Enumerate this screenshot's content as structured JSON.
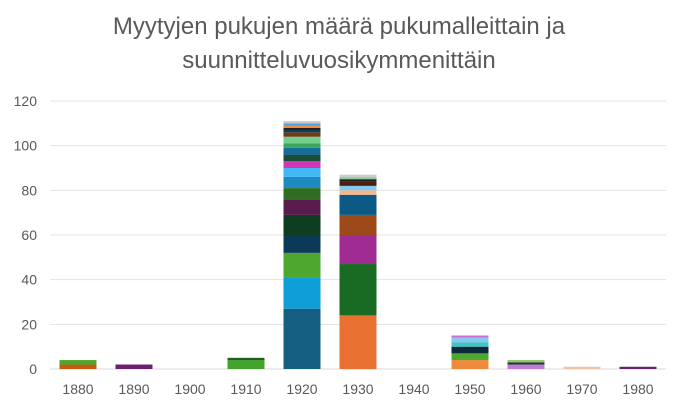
{
  "chart_data": {
    "type": "bar",
    "stacked": true,
    "title_lines": [
      "Myytyjen pukujen määrä pukumalleittain ja",
      "suunnitteluvuosikymmenittäin"
    ],
    "categories": [
      "1880",
      "1890",
      "1900",
      "1910",
      "1920",
      "1930",
      "1940",
      "1950",
      "1960",
      "1970",
      "1980"
    ],
    "ylim": [
      0,
      120
    ],
    "yticks": [
      0,
      20,
      40,
      60,
      80,
      100,
      120
    ],
    "grid": true,
    "legend": "none",
    "stacks": [
      [
        {
          "value": 2,
          "color": "#c55a11"
        },
        {
          "value": 2,
          "color": "#4ea72e"
        }
      ],
      [
        {
          "value": 2,
          "color": "#6b1f6e"
        }
      ],
      [],
      [
        {
          "value": 4,
          "color": "#43a32b"
        },
        {
          "value": 1,
          "color": "#1f5f22"
        }
      ],
      [
        {
          "value": 27,
          "color": "#156082"
        },
        {
          "value": 14,
          "color": "#0f9ed5"
        },
        {
          "value": 11,
          "color": "#4ea72e"
        },
        {
          "value": 8,
          "color": "#0b3a57"
        },
        {
          "value": 9,
          "color": "#0e3d22"
        },
        {
          "value": 7,
          "color": "#5a1b4e"
        },
        {
          "value": 5,
          "color": "#2f6e22"
        },
        {
          "value": 5,
          "color": "#1f8ac2"
        },
        {
          "value": 4,
          "color": "#44b8f5"
        },
        {
          "value": 3,
          "color": "#d137b2"
        },
        {
          "value": 3,
          "color": "#1a4d38"
        },
        {
          "value": 3,
          "color": "#136d9c"
        },
        {
          "value": 2,
          "color": "#3da45d"
        },
        {
          "value": 3,
          "color": "#70d08c"
        },
        {
          "value": 2,
          "color": "#6e3a1a"
        },
        {
          "value": 1,
          "color": "#0b3a57"
        },
        {
          "value": 1,
          "color": "#222222"
        },
        {
          "value": 1,
          "color": "#ee8a3c"
        },
        {
          "value": 1,
          "color": "#4aa3df"
        },
        {
          "value": 1,
          "color": "#c9c9c9"
        }
      ],
      [
        {
          "value": 24,
          "color": "#e97132"
        },
        {
          "value": 23,
          "color": "#196b24"
        },
        {
          "value": 13,
          "color": "#a02b93"
        },
        {
          "value": 9,
          "color": "#9c4a1a"
        },
        {
          "value": 9,
          "color": "#0b5a86"
        },
        {
          "value": 2,
          "color": "#f2b88c"
        },
        {
          "value": 2,
          "color": "#84c9ef"
        },
        {
          "value": 2,
          "color": "#4d1f10"
        },
        {
          "value": 1,
          "color": "#222222"
        },
        {
          "value": 1,
          "color": "#8fd19e"
        },
        {
          "value": 1,
          "color": "#cccccc"
        }
      ],
      [],
      [
        {
          "value": 4,
          "color": "#ee8a3c"
        },
        {
          "value": 3,
          "color": "#4ea72e"
        },
        {
          "value": 3,
          "color": "#0e2a3a"
        },
        {
          "value": 2,
          "color": "#44c4c4"
        },
        {
          "value": 2,
          "color": "#84c9ef"
        },
        {
          "value": 1,
          "color": "#d16fd0"
        }
      ],
      [
        {
          "value": 2,
          "color": "#c17ad6"
        },
        {
          "value": 1,
          "color": "#1f3a2e"
        },
        {
          "value": 1,
          "color": "#8cc56b"
        }
      ],
      [
        {
          "value": 1,
          "color": "#f2c4a6"
        }
      ],
      [
        {
          "value": 1,
          "color": "#6b1f6e"
        }
      ]
    ]
  }
}
